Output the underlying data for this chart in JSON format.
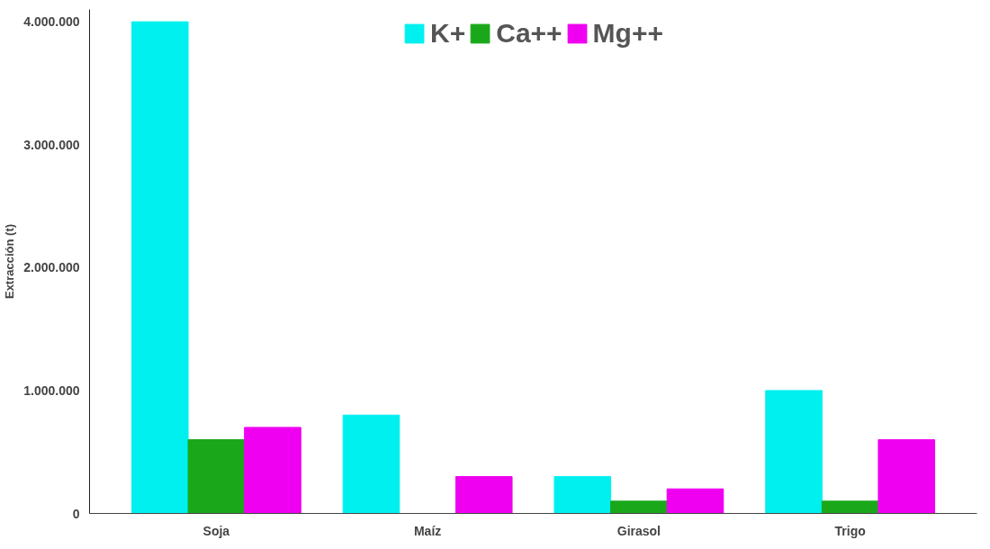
{
  "chart_data": {
    "type": "bar",
    "ylabel": "Extracción (t)",
    "categories": [
      "Soja",
      "Maíz",
      "Girasol",
      "Trigo"
    ],
    "series": [
      {
        "name": "K+",
        "color": "#00f0f0",
        "values": [
          4000000,
          800000,
          300000,
          1000000
        ]
      },
      {
        "name": "Ca++",
        "color": "#1aa81a",
        "values": [
          600000,
          0,
          100000,
          100000
        ]
      },
      {
        "name": "Mg++",
        "color": "#f000f0",
        "values": [
          700000,
          300000,
          200000,
          600000
        ]
      }
    ],
    "ylim": [
      0,
      4100000
    ],
    "yticks": [
      {
        "value": 0,
        "label": "0"
      },
      {
        "value": 1000000,
        "label": "1.000.000"
      },
      {
        "value": 2000000,
        "label": "2.000.000"
      },
      {
        "value": 3000000,
        "label": "3.000.000"
      },
      {
        "value": 4000000,
        "label": "4.000.000"
      }
    ],
    "grid": false,
    "legend": "top"
  }
}
